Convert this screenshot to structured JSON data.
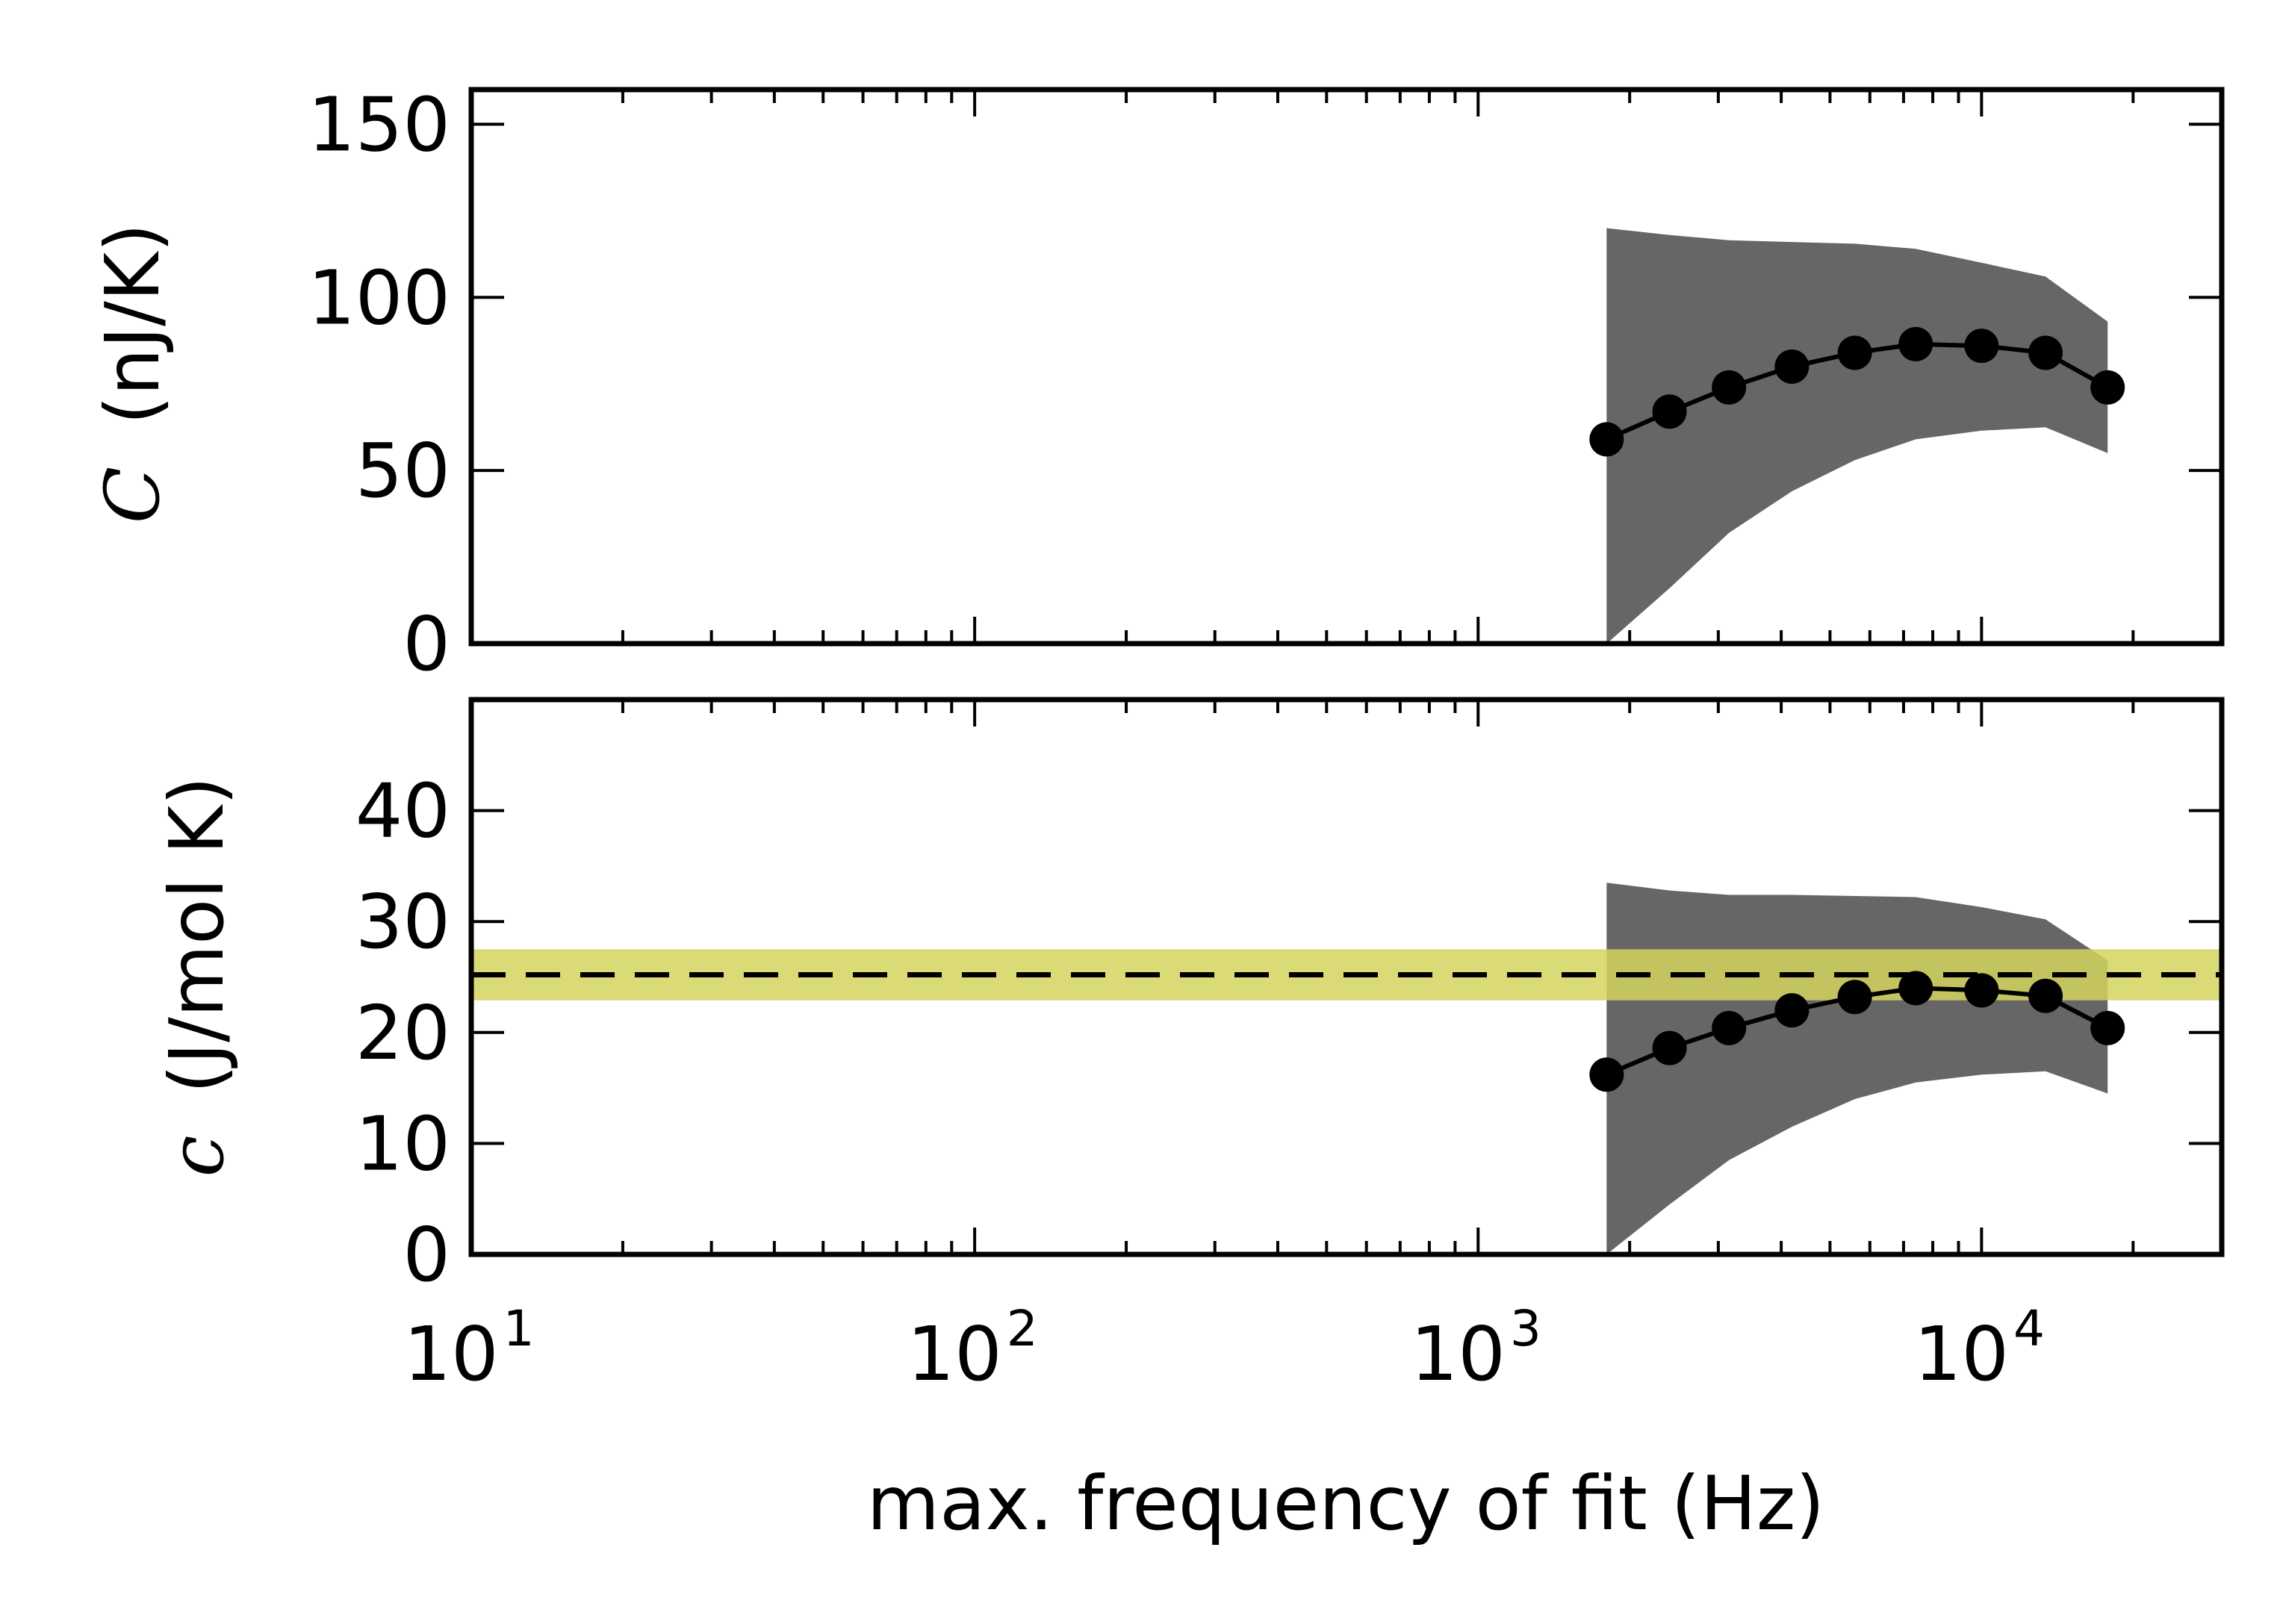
{
  "chart_data": [
    {
      "type": "line",
      "xscale": "log",
      "xlim": [
        10,
        30000
      ],
      "ylim": [
        0,
        160
      ],
      "yticks": [
        0,
        50,
        100,
        150
      ],
      "ylabel_symbol": "C",
      "ylabel_unit": "(nJ/K)",
      "x": [
        1800,
        2400,
        3150,
        4200,
        5600,
        7400,
        10000,
        13400,
        17800
      ],
      "series": [
        {
          "values": [
            59,
            67,
            74,
            80,
            84,
            86.5,
            86,
            84,
            74
          ]
        }
      ],
      "band": {
        "upper": [
          120,
          118,
          116.5,
          116,
          115.5,
          114,
          110,
          106,
          93
        ],
        "lower": [
          0,
          16,
          32,
          44,
          53,
          59,
          61.5,
          62.5,
          55
        ]
      },
      "band_color": "#666666",
      "line_color": "#000000"
    },
    {
      "type": "line",
      "xscale": "log",
      "xlim": [
        10,
        30000
      ],
      "ylim": [
        0,
        50
      ],
      "yticks": [
        0,
        10,
        20,
        30,
        40
      ],
      "ylabel_symbol": "c",
      "ylabel_unit": "(J/mol K)",
      "xticks": [
        10,
        100,
        1000,
        10000
      ],
      "xtick_labels": [
        {
          "base": "10",
          "exp": "1"
        },
        {
          "base": "10",
          "exp": "2"
        },
        {
          "base": "10",
          "exp": "3"
        },
        {
          "base": "10",
          "exp": "4"
        }
      ],
      "xlabel": "max. frequency of fit (Hz)",
      "x": [
        1800,
        2400,
        3150,
        4200,
        5600,
        7400,
        10000,
        13400,
        17800
      ],
      "series": [
        {
          "values": [
            16.2,
            18.6,
            20.4,
            22,
            23.2,
            24,
            23.8,
            23.3,
            20.4
          ]
        }
      ],
      "band": {
        "upper": [
          33.5,
          32.8,
          32.4,
          32.4,
          32.3,
          32.2,
          31.3,
          30.2,
          26.5
        ],
        "lower": [
          0,
          4.5,
          8.5,
          11.5,
          14,
          15.5,
          16.2,
          16.5,
          14.5
        ]
      },
      "reference": {
        "value": 25.2,
        "band": [
          22.9,
          27.5
        ],
        "color": "#d4d35f"
      },
      "band_color": "#666666",
      "line_color": "#000000"
    }
  ]
}
